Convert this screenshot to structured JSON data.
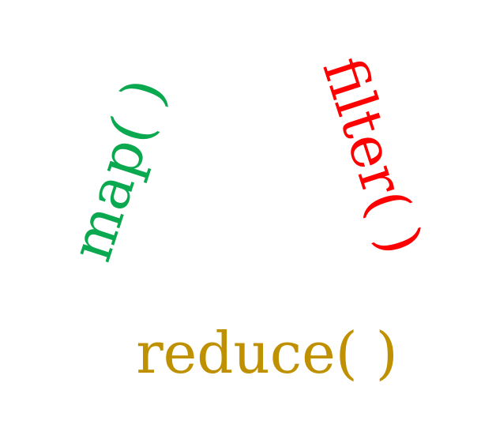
{
  "labels": {
    "map": {
      "text": "map( )",
      "color": "#0aa84f"
    },
    "filter": {
      "text": "filter( )",
      "color": "#ff0000"
    },
    "reduce": {
      "text": "reduce( )",
      "color": "#bf9000"
    }
  }
}
